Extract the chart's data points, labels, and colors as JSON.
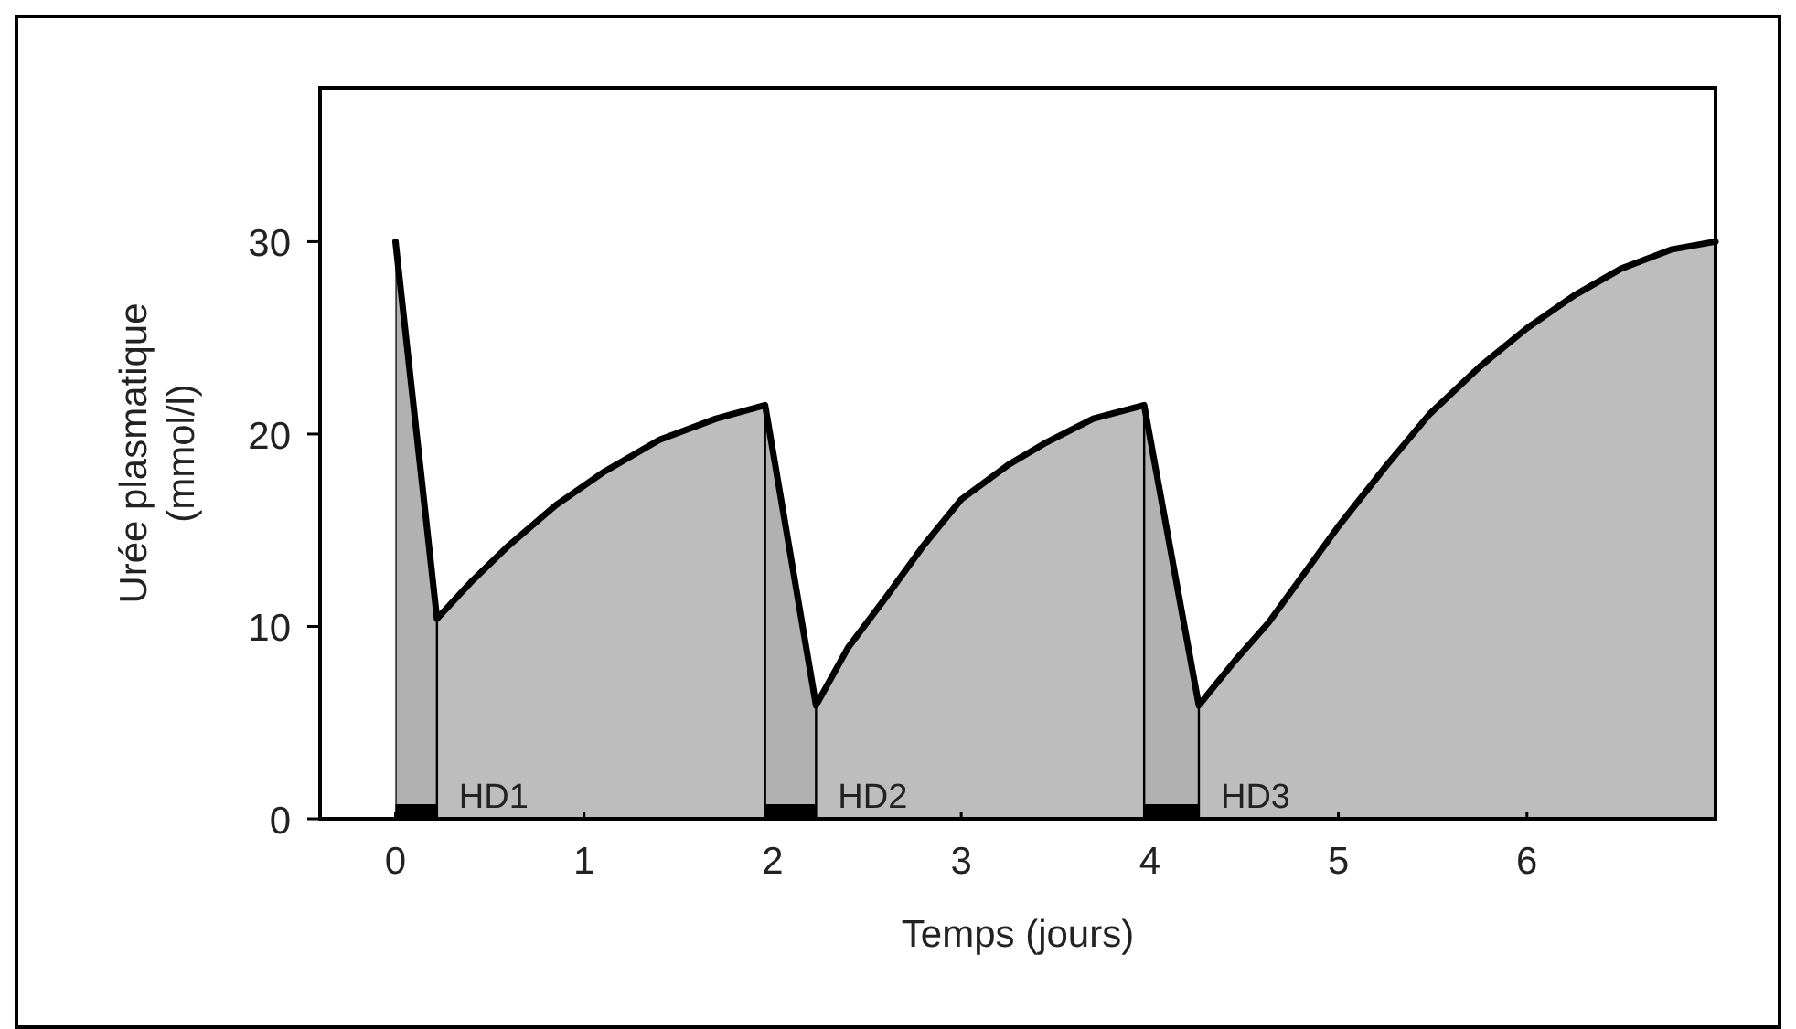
{
  "chart_data": {
    "type": "area",
    "xlabel": "Temps (jours)",
    "ylabel": "Urée plasmatique\n(mmol/l)",
    "x": [
      0,
      0.22,
      0.4,
      0.6,
      0.85,
      1.1,
      1.4,
      1.7,
      1.96,
      2.23,
      2.4,
      2.6,
      2.8,
      3,
      3.25,
      3.44,
      3.7,
      3.97,
      4.26,
      4.45,
      4.63,
      5,
      5.25,
      5.48,
      5.75,
      6,
      6.25,
      6.5,
      6.77,
      7
    ],
    "series": [
      {
        "color": "#bdbdbd",
        "values": [
          30,
          10.4,
          12.3,
          14.2,
          16.3,
          18,
          19.7,
          20.8,
          21.5,
          5.9,
          8.9,
          11.5,
          14.2,
          16.6,
          18.4,
          19.5,
          20.8,
          21.5,
          5.9,
          8.2,
          10.2,
          15.2,
          18.3,
          21,
          23.5,
          25.5,
          27.2,
          28.6,
          29.6,
          30
        ]
      }
    ],
    "bands": [
      {
        "axis": "x",
        "from": 0,
        "to": 0.22,
        "label": "HD1",
        "color": "#000000"
      },
      {
        "axis": "x",
        "from": 1.96,
        "to": 2.23,
        "label": "HD2",
        "color": "#000000"
      },
      {
        "axis": "x",
        "from": 3.97,
        "to": 4.26,
        "label": "HD3",
        "color": "#000000"
      }
    ],
    "xlim": [
      -0.4,
      7
    ],
    "ylim": [
      0,
      38
    ],
    "xticks": [
      0,
      1,
      2,
      3,
      4,
      5,
      6
    ],
    "yticks": [
      0,
      10,
      20,
      30
    ],
    "grid": false
  }
}
